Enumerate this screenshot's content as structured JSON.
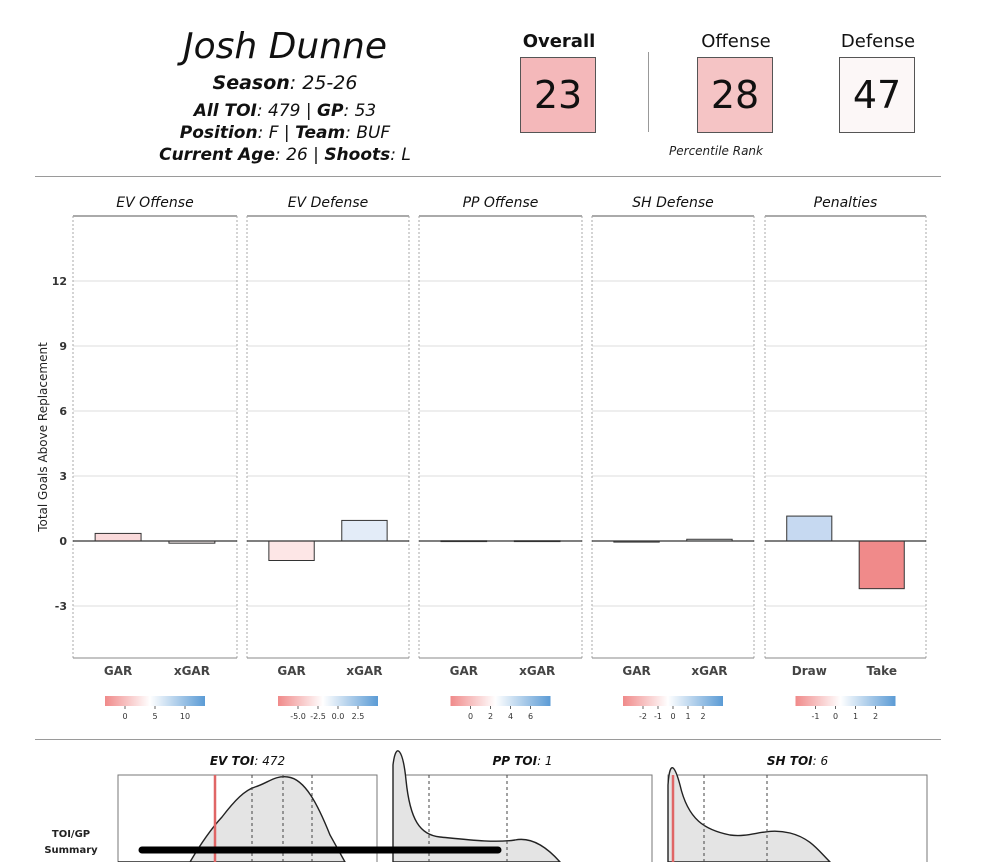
{
  "player": {
    "name": "Josh Dunne",
    "season_label": "Season",
    "season": "25-26",
    "toi_label": "All TOI",
    "toi": "479",
    "gp_label": "GP",
    "gp": "53",
    "position_label": "Position",
    "position": "F",
    "team_label": "Team",
    "team": "BUF",
    "age_label": "Current Age",
    "age": "26",
    "shoots_label": "Shoots",
    "shoots": "L"
  },
  "ranks": {
    "overall_label": "Overall",
    "overall": "23",
    "offense_label": "Offense",
    "offense": "28",
    "defense_label": "Defense",
    "defense": "47",
    "caption": "Percentile Rank",
    "colors": {
      "overall": "#f4b8ba",
      "offense": "#f5c4c5",
      "defense": "#fcf7f7"
    }
  },
  "chart_data": [
    {
      "type": "bar",
      "ylabel": "Total Goals Above Replacement",
      "ylim": [
        -5.4,
        15
      ],
      "yticks": [
        -3,
        0,
        3,
        6,
        9,
        12
      ],
      "grid": true,
      "panels": [
        {
          "title": "EV Offense",
          "categories": [
            "GAR",
            "xGAR"
          ],
          "values": [
            0.35,
            -0.1
          ],
          "colors": [
            "#fadadb",
            "#faf2f2"
          ],
          "legend": {
            "ticks": [
              "0",
              "5",
              "10"
            ]
          }
        },
        {
          "title": "EV Defense",
          "categories": [
            "GAR",
            "xGAR"
          ],
          "values": [
            -0.9,
            0.95
          ],
          "colors": [
            "#fde6e6",
            "#e3ecf8"
          ],
          "legend": {
            "ticks": [
              "-5.0",
              "-2.5",
              "0.0",
              "2.5"
            ]
          }
        },
        {
          "title": "PP Offense",
          "categories": [
            "GAR",
            "xGAR"
          ],
          "values": [
            0.01,
            0.01
          ],
          "colors": [
            "#f7f7f7",
            "#f7f7f7"
          ],
          "legend": {
            "ticks": [
              "0",
              "2",
              "4",
              "6"
            ]
          }
        },
        {
          "title": "SH Defense",
          "categories": [
            "GAR",
            "xGAR"
          ],
          "values": [
            -0.05,
            0.08
          ],
          "colors": [
            "#f9f4f4",
            "#f4f6f9"
          ],
          "legend": {
            "ticks": [
              "-2",
              "-1",
              "0",
              "1",
              "2"
            ]
          }
        },
        {
          "title": "Penalties",
          "categories": [
            "Draw",
            "Take"
          ],
          "values": [
            1.15,
            -2.2
          ],
          "colors": [
            "#c6d9f1",
            "#f08a8a"
          ],
          "legend": {
            "ticks": [
              "-1",
              "0",
              "1",
              "2"
            ]
          }
        }
      ]
    },
    {
      "type": "area",
      "row_label": "TOI/GP\nSummary",
      "panels": [
        {
          "title_label": "EV TOI",
          "title_value": "472"
        },
        {
          "title_label": "PP TOI",
          "title_value": "1"
        },
        {
          "title_label": "SH TOI",
          "title_value": "6"
        }
      ]
    }
  ],
  "colors": {
    "negative": "#f08a8a",
    "positive": "#5b9bd5",
    "marker": "#e06666"
  }
}
